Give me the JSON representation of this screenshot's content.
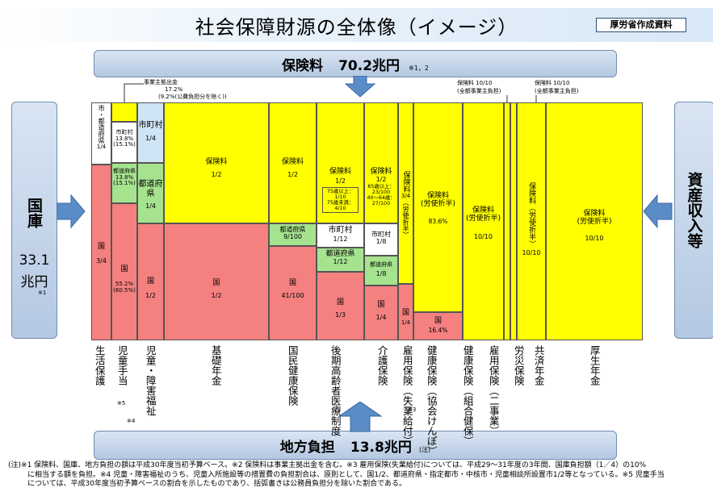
{
  "title": "社会保障財源の全体像（イメージ）",
  "author": "厚労省作成資料",
  "top": {
    "label": "保険料",
    "amount": "70.2兆円",
    "note": "※1，2"
  },
  "bottom": {
    "label": "地方負担",
    "amount": "13.8兆円",
    "note": "(注)"
  },
  "left": {
    "label": "国庫",
    "amount": "33.1",
    "unit": "兆円",
    "note": "※1"
  },
  "right": {
    "label": "資産収入等"
  },
  "annotations": {
    "employer_contrib": "事業主拠出金",
    "employer_contrib_pct": "17.2%",
    "employer_contrib_note": "(9.2%(公費負担分を除く))",
    "annot_a_1": "保険料 10/10",
    "annot_a_2": "(全額事業主負担)",
    "annot_b_1": "保険料 10/10",
    "annot_b_2": "(全額事業主負担)"
  },
  "segments": {
    "welfare_local": "市・都道府県",
    "welfare_local_frac": "1/4",
    "welfare_nat": "国",
    "welfare_nat_frac": "3/4",
    "child_city": "市町村",
    "child_city_pct": "13.8%",
    "child_city_pct2": "(15.1%)",
    "child_pref": "都道府県",
    "child_pref_pct": "13.8%",
    "child_pref_pct2": "(15.1%)",
    "child_nat": "国",
    "child_nat_pct": "55.2%",
    "child_nat_pct2": "(60.5%)",
    "dis_city": "市町村",
    "dis_city_frac": "1/4",
    "dis_pref": "都道府県",
    "dis_pref_frac": "1/4",
    "dis_nat": "国",
    "dis_nat_frac": "1/2",
    "basic_prem": "保険料",
    "basic_prem_frac": "1/2",
    "basic_nat": "国",
    "basic_nat_frac": "1/2",
    "nhi_prem": "保険料",
    "nhi_prem_frac": "1/2",
    "nhi_pref": "都道府県",
    "nhi_pref_frac": "9/100",
    "nhi_nat": "国",
    "nhi_nat_frac": "41/100",
    "elder_prem": "保険料",
    "elder_prem_frac": "1/2",
    "elder_prem_n1": "75歳以上：1/10",
    "elder_prem_n2": "75歳未満：4/10",
    "elder_city": "市町村",
    "elder_city_frac": "1/12",
    "elder_pref": "都道府県",
    "elder_pref_frac": "1/12",
    "elder_nat": "国",
    "elder_nat_frac": "1/3",
    "care_prem": "保険料",
    "care_prem_frac": "1/2",
    "care_prem_n1": "65歳以上：",
    "care_prem_n2": "23/100",
    "care_prem_n3": "40～64歳：",
    "care_prem_n4": "27/100",
    "care_city": "市町村",
    "care_city_frac": "1/8",
    "care_pref": "都道府県",
    "care_pref_frac": "1/8",
    "care_nat": "国",
    "care_nat_frac": "1/4",
    "emp_prem": "保険料",
    "emp_prem_frac": "3/4",
    "emp_prem_share": "（労使折半）",
    "emp_nat": "国",
    "emp_nat_frac": "1/4",
    "kyokai_prem": "保険料",
    "kyokai_prem_share": "(労使折半)",
    "kyokai_prem_pct": "83.6%",
    "kyokai_nat": "国",
    "kyokai_nat_pct": "16.4%",
    "kumiai_prem": "保険料",
    "kumiai_prem_share": "(労使折半)",
    "kumiai_prem_frac": "10/10",
    "kyosai_prem": "保険料",
    "kyosai_prem_share": "（労使折半）",
    "kyosai_prem_frac": "10/10",
    "kousei_prem": "保険料",
    "kousei_prem_share": "(労使折半)",
    "kousei_prem_frac": "10/10"
  },
  "columns": [
    {
      "label": "生活保護",
      "note": ""
    },
    {
      "label": "児童手当",
      "note": "※5"
    },
    {
      "label": "児童・障害福祉",
      "note": "※4"
    },
    {
      "label": "基礎年金",
      "note": ""
    },
    {
      "label": "国民健康保険",
      "note": ""
    },
    {
      "label": "後期高齢者医療制度",
      "note": ""
    },
    {
      "label": "介護保険",
      "note": ""
    },
    {
      "label": "雇用保険（失業給付）",
      "note": "※3"
    },
    {
      "label": "健康保険（協会けんぽ）",
      "note": ""
    },
    {
      "label": "健康保険（組合健保）",
      "note": ""
    },
    {
      "label": "雇用保険（二事業）",
      "note": ""
    },
    {
      "label": "労災保険",
      "note": ""
    },
    {
      "label": "共済年金",
      "note": ""
    },
    {
      "label": "厚生年金",
      "note": ""
    }
  ],
  "footnote": {
    "line1": "(注)※1 保険料、国庫、地方負担の額は平成30年度当初予算ベース。※2 保険料は事業主拠出金を含む。※3 雇用保険(失業給付)については、平成29～31年度の3年間、国庫負担額（1／4）の10%",
    "line2": "に相当する額を負担。※4 児童・障害福祉のうち、児童入所施設等の措置費の負担割合は、原則として、国1/2、都道府県・指定都市・中核市・児童相談所設置市1/2等となっている。※5 児童手当",
    "line3": "については、平成30年度当初予算ベースの割合を示したものであり、括弧書きは公務員負担分を除いた割合である。"
  }
}
